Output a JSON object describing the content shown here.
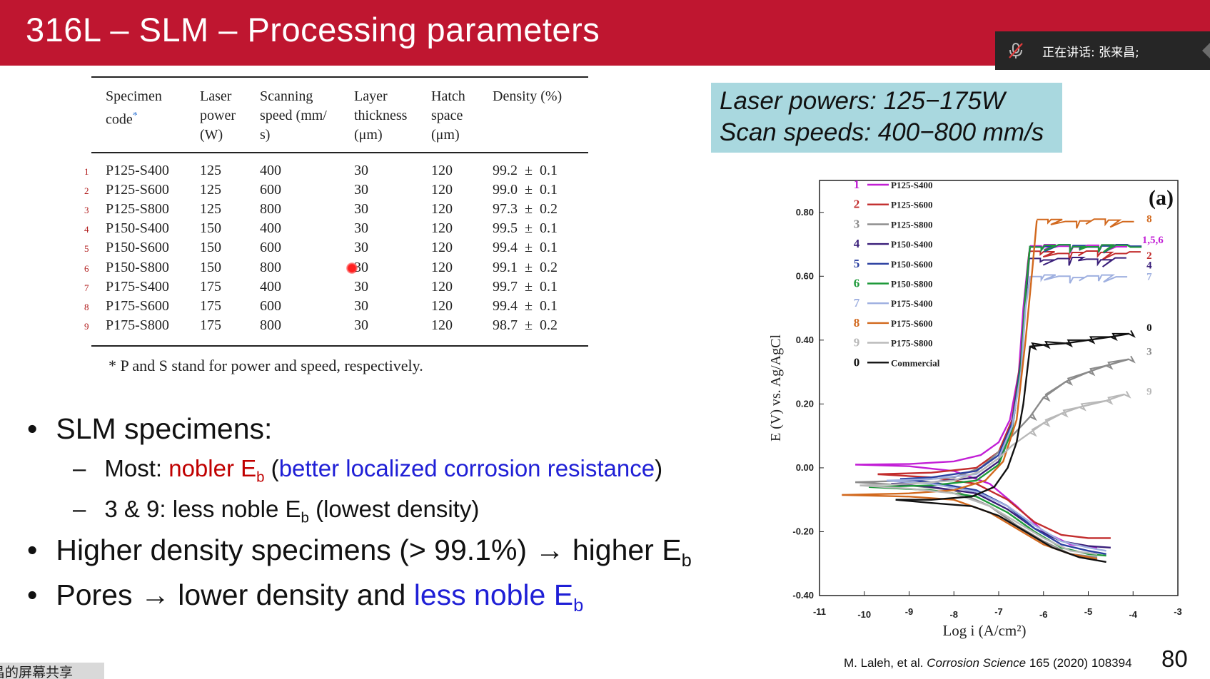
{
  "title": "316L – SLM – Processing parameters",
  "speaker_overlay": {
    "text": "正在讲话: 张来昌;",
    "icon": "mic-muted-icon"
  },
  "table": {
    "headers": [
      [
        "Specimen",
        "code*"
      ],
      [
        "Laser",
        "power",
        "(W)"
      ],
      [
        "Scanning",
        "speed (mm/",
        "s)"
      ],
      [
        "Layer",
        "thickness",
        "(μm)"
      ],
      [
        "Hatch",
        "space",
        "(μm)"
      ],
      [
        "Density (%)"
      ]
    ],
    "rows": [
      {
        "idx": "1",
        "code": "P125-S400",
        "power": "125",
        "speed": "400",
        "layer": "30",
        "hatch": "120",
        "density": "99.2",
        "err": "0.1"
      },
      {
        "idx": "2",
        "code": "P125-S600",
        "power": "125",
        "speed": "600",
        "layer": "30",
        "hatch": "120",
        "density": "99.0",
        "err": "0.1"
      },
      {
        "idx": "3",
        "code": "P125-S800",
        "power": "125",
        "speed": "800",
        "layer": "30",
        "hatch": "120",
        "density": "97.3",
        "err": "0.2"
      },
      {
        "idx": "4",
        "code": "P150-S400",
        "power": "150",
        "speed": "400",
        "layer": "30",
        "hatch": "120",
        "density": "99.5",
        "err": "0.1"
      },
      {
        "idx": "5",
        "code": "P150-S600",
        "power": "150",
        "speed": "600",
        "layer": "30",
        "hatch": "120",
        "density": "99.4",
        "err": "0.1"
      },
      {
        "idx": "6",
        "code": "P150-S800",
        "power": "150",
        "speed": "800",
        "layer": "30",
        "hatch": "120",
        "density": "99.1",
        "err": "0.2"
      },
      {
        "idx": "7",
        "code": "P175-S400",
        "power": "175",
        "speed": "400",
        "layer": "30",
        "hatch": "120",
        "density": "99.7",
        "err": "0.1"
      },
      {
        "idx": "8",
        "code": "P175-S600",
        "power": "175",
        "speed": "600",
        "layer": "30",
        "hatch": "120",
        "density": "99.4",
        "err": "0.1"
      },
      {
        "idx": "9",
        "code": "P175-S800",
        "power": "175",
        "speed": "800",
        "layer": "30",
        "hatch": "120",
        "density": "98.7",
        "err": "0.2"
      }
    ],
    "pm": "±",
    "footnote": "*  P and S stand for power and speed, respectively."
  },
  "bullets": {
    "b1": "SLM specimens:",
    "b1a_prefix": "Most: ",
    "b1a_red": "nobler E",
    "b1a_red_sub": "b",
    "b1a_open": " (",
    "b1a_blue": "better localized corrosion resistance",
    "b1a_close": ")",
    "b1b": "3 & 9: less noble E",
    "b1b_sub": "b",
    "b1b_tail": " (lowest density)",
    "b2": "Higher density specimens (> 99.1%) → higher E",
    "b2_sub": "b",
    "b3_prefix": "Pores → lower density and ",
    "b3_blue": "less noble E",
    "b3_sub": "b",
    "bullet_char": "•",
    "dash_char": "–"
  },
  "infobox": {
    "line1": "Laser powers: 125−175W",
    "line2": "Scan speeds: 400−800 mm/s",
    "bg": "#a9d8df"
  },
  "chart_data": {
    "type": "line",
    "panel_label": "(a)",
    "xlabel": "Log i (A/cm²)",
    "ylabel": "E (V) vs. Ag/AgCl",
    "xlim": [
      -11,
      -3
    ],
    "ylim": [
      -0.4,
      0.9
    ],
    "xticks": [
      "-11",
      "-10",
      "-9",
      "-8",
      "-7",
      "-6",
      "-5",
      "-4",
      "-3"
    ],
    "yticks": [
      "0.80",
      "0.60",
      "0.40",
      "0.20",
      "0.00",
      "-0.20",
      "-0.40"
    ],
    "series": [
      {
        "name": "P125-S400",
        "num": "1",
        "color": "#c21fd6",
        "ecorr": 0.01,
        "eb": 0.695,
        "pass_i": -6.2,
        "anodic": [
          [
            -10.2,
            0.01
          ],
          [
            -9,
            0.012
          ],
          [
            -8,
            0.02
          ],
          [
            -7.4,
            0.04
          ],
          [
            -7,
            0.08
          ],
          [
            -6.75,
            0.15
          ],
          [
            -6.55,
            0.3
          ],
          [
            -6.45,
            0.5
          ],
          [
            -6.35,
            0.64
          ],
          [
            -6.3,
            0.695
          ]
        ],
        "cathodic": [
          [
            -10.2,
            0.01
          ],
          [
            -9,
            0.005
          ],
          [
            -8,
            -0.01
          ],
          [
            -7.2,
            -0.05
          ],
          [
            -6.6,
            -0.12
          ],
          [
            -6,
            -0.2
          ],
          [
            -5.4,
            -0.24
          ],
          [
            -4.8,
            -0.25
          ]
        ]
      },
      {
        "name": "P125-S600",
        "num": "2",
        "color": "#c22c2c",
        "ecorr": -0.02,
        "eb": 0.675,
        "pass_i": -6.2,
        "anodic": [
          [
            -9.7,
            -0.02
          ],
          [
            -8.5,
            -0.015
          ],
          [
            -7.5,
            0
          ],
          [
            -7,
            0.05
          ],
          [
            -6.7,
            0.15
          ],
          [
            -6.5,
            0.35
          ],
          [
            -6.4,
            0.55
          ],
          [
            -6.32,
            0.675
          ]
        ],
        "cathodic": [
          [
            -9.7,
            -0.02
          ],
          [
            -8.5,
            -0.03
          ],
          [
            -7.5,
            -0.05
          ],
          [
            -6.8,
            -0.1
          ],
          [
            -6.2,
            -0.17
          ],
          [
            -5.6,
            -0.21
          ],
          [
            -5,
            -0.22
          ],
          [
            -4.5,
            -0.22
          ]
        ]
      },
      {
        "name": "P125-S800",
        "num": "3",
        "color": "#8a8a8a",
        "ecorr": -0.045,
        "eb": 0.32,
        "pass_i": -5.5,
        "anodic": [
          [
            -10.2,
            -0.045
          ],
          [
            -9,
            -0.04
          ],
          [
            -8,
            -0.03
          ],
          [
            -7.4,
            0
          ],
          [
            -7,
            0.05
          ],
          [
            -6.7,
            0.1
          ],
          [
            -6.3,
            0.16
          ],
          [
            -6,
            0.22
          ],
          [
            -5.5,
            0.27
          ],
          [
            -5,
            0.3
          ],
          [
            -4.6,
            0.32
          ],
          [
            -4.1,
            0.34
          ]
        ],
        "cathodic": [
          [
            -10.2,
            -0.045
          ],
          [
            -9,
            -0.055
          ],
          [
            -8,
            -0.07
          ],
          [
            -7.2,
            -0.12
          ],
          [
            -6.6,
            -0.18
          ],
          [
            -6,
            -0.23
          ],
          [
            -5.4,
            -0.27
          ],
          [
            -4.8,
            -0.28
          ]
        ]
      },
      {
        "name": "P150-S400",
        "num": "4",
        "color": "#3a1f7a",
        "ecorr": -0.05,
        "eb": 0.655,
        "pass_i": -6.2,
        "anodic": [
          [
            -9.4,
            -0.05
          ],
          [
            -8.5,
            -0.045
          ],
          [
            -7.5,
            -0.03
          ],
          [
            -7,
            0.02
          ],
          [
            -6.7,
            0.12
          ],
          [
            -6.5,
            0.32
          ],
          [
            -6.4,
            0.52
          ],
          [
            -6.32,
            0.655
          ]
        ],
        "cathodic": [
          [
            -9.4,
            -0.05
          ],
          [
            -8.5,
            -0.06
          ],
          [
            -7.5,
            -0.08
          ],
          [
            -6.8,
            -0.13
          ],
          [
            -6.2,
            -0.19
          ],
          [
            -5.6,
            -0.23
          ],
          [
            -5,
            -0.245
          ],
          [
            -4.5,
            -0.25
          ]
        ]
      },
      {
        "name": "P150-S600",
        "num": "5",
        "color": "#2a3fa0",
        "ecorr": -0.035,
        "eb": 0.695,
        "pass_i": -6.2,
        "anodic": [
          [
            -9.2,
            -0.035
          ],
          [
            -8.5,
            -0.03
          ],
          [
            -7.5,
            -0.01
          ],
          [
            -7,
            0.04
          ],
          [
            -6.7,
            0.14
          ],
          [
            -6.5,
            0.34
          ],
          [
            -6.4,
            0.55
          ],
          [
            -6.3,
            0.695
          ]
        ],
        "cathodic": [
          [
            -9.2,
            -0.035
          ],
          [
            -8.5,
            -0.045
          ],
          [
            -7.5,
            -0.07
          ],
          [
            -6.8,
            -0.12
          ],
          [
            -6.2,
            -0.19
          ],
          [
            -5.6,
            -0.24
          ],
          [
            -5,
            -0.26
          ],
          [
            -4.6,
            -0.27
          ]
        ]
      },
      {
        "name": "P150-S800",
        "num": "6",
        "color": "#1e9a3a",
        "ecorr": -0.06,
        "eb": 0.695,
        "pass_i": -6.2,
        "anodic": [
          [
            -9.9,
            -0.06
          ],
          [
            -8.5,
            -0.055
          ],
          [
            -7.5,
            -0.04
          ],
          [
            -7,
            0.01
          ],
          [
            -6.7,
            0.12
          ],
          [
            -6.5,
            0.32
          ],
          [
            -6.4,
            0.55
          ],
          [
            -6.3,
            0.695
          ]
        ],
        "cathodic": [
          [
            -9.9,
            -0.06
          ],
          [
            -8.5,
            -0.07
          ],
          [
            -7.5,
            -0.09
          ],
          [
            -6.8,
            -0.14
          ],
          [
            -6.2,
            -0.2
          ],
          [
            -5.6,
            -0.25
          ],
          [
            -5,
            -0.27
          ],
          [
            -4.6,
            -0.275
          ]
        ]
      },
      {
        "name": "P175-S400",
        "num": "7",
        "color": "#9fb0e0",
        "ecorr": -0.04,
        "eb": 0.6,
        "pass_i": -6.2,
        "anodic": [
          [
            -9.5,
            -0.04
          ],
          [
            -8.5,
            -0.035
          ],
          [
            -7.5,
            -0.02
          ],
          [
            -7,
            0.03
          ],
          [
            -6.7,
            0.13
          ],
          [
            -6.5,
            0.3
          ],
          [
            -6.4,
            0.5
          ],
          [
            -6.3,
            0.6
          ]
        ],
        "cathodic": [
          [
            -9.5,
            -0.04
          ],
          [
            -8.5,
            -0.05
          ],
          [
            -7.5,
            -0.075
          ],
          [
            -6.8,
            -0.12
          ],
          [
            -6.2,
            -0.18
          ],
          [
            -5.6,
            -0.23
          ],
          [
            -5,
            -0.25
          ],
          [
            -4.6,
            -0.26
          ]
        ]
      },
      {
        "name": "P175-S600",
        "num": "8",
        "color": "#d2691e",
        "ecorr": -0.085,
        "eb": 0.775,
        "pass_i": -6.1,
        "anodic": [
          [
            -10.5,
            -0.085
          ],
          [
            -9,
            -0.08
          ],
          [
            -8,
            -0.07
          ],
          [
            -7.3,
            -0.04
          ],
          [
            -6.9,
            0.02
          ],
          [
            -6.6,
            0.15
          ],
          [
            -6.4,
            0.4
          ],
          [
            -6.25,
            0.62
          ],
          [
            -6.15,
            0.775
          ]
        ],
        "cathodic": [
          [
            -10.5,
            -0.085
          ],
          [
            -9,
            -0.09
          ],
          [
            -8,
            -0.1
          ],
          [
            -7.2,
            -0.14
          ],
          [
            -6.6,
            -0.19
          ],
          [
            -6,
            -0.24
          ],
          [
            -5.4,
            -0.27
          ],
          [
            -4.8,
            -0.285
          ]
        ]
      },
      {
        "name": "P175-S800",
        "num": "9",
        "color": "#b8b8b8",
        "ecorr": -0.055,
        "eb": 0.22,
        "pass_i": -5.2,
        "anodic": [
          [
            -10.1,
            -0.055
          ],
          [
            -9,
            -0.05
          ],
          [
            -8,
            -0.04
          ],
          [
            -7.4,
            -0.01
          ],
          [
            -7,
            0.03
          ],
          [
            -6.7,
            0.07
          ],
          [
            -6.3,
            0.11
          ],
          [
            -6,
            0.14
          ],
          [
            -5.6,
            0.17
          ],
          [
            -5.2,
            0.19
          ],
          [
            -4.6,
            0.21
          ],
          [
            -4.2,
            0.23
          ]
        ],
        "cathodic": [
          [
            -10.1,
            -0.055
          ],
          [
            -9,
            -0.065
          ],
          [
            -8,
            -0.08
          ],
          [
            -7.2,
            -0.12
          ],
          [
            -6.6,
            -0.17
          ],
          [
            -6,
            -0.22
          ],
          [
            -5.4,
            -0.26
          ],
          [
            -4.8,
            -0.27
          ]
        ]
      },
      {
        "name": "Commercial",
        "num": "0",
        "color": "#111111",
        "ecorr": -0.1,
        "eb": 0.42,
        "pass_i": -5,
        "anodic": [
          [
            -9.3,
            -0.1
          ],
          [
            -8.5,
            -0.1
          ],
          [
            -7.6,
            -0.09
          ],
          [
            -7.1,
            -0.06
          ],
          [
            -6.8,
            0
          ],
          [
            -6.6,
            0.08
          ],
          [
            -6.45,
            0.2
          ],
          [
            -6.35,
            0.32
          ],
          [
            -6.3,
            0.38
          ],
          [
            -6,
            0.385
          ],
          [
            -5.5,
            0.39
          ],
          [
            -5,
            0.4
          ],
          [
            -4.5,
            0.41
          ],
          [
            -4.1,
            0.42
          ]
        ],
        "cathodic": [
          [
            -9.3,
            -0.1
          ],
          [
            -8.5,
            -0.11
          ],
          [
            -7.6,
            -0.12
          ],
          [
            -7,
            -0.15
          ],
          [
            -6.4,
            -0.2
          ],
          [
            -5.8,
            -0.25
          ],
          [
            -5.2,
            -0.28
          ],
          [
            -4.6,
            -0.295
          ]
        ]
      }
    ],
    "end_labels": [
      {
        "text": "8",
        "x": -3.7,
        "y": 0.78,
        "color": "#d2691e"
      },
      {
        "text": "1,5,6",
        "x": -3.8,
        "y": 0.715,
        "color": "#c21fd6"
      },
      {
        "text": "2",
        "x": -3.7,
        "y": 0.665,
        "color": "#c22c2c"
      },
      {
        "text": "4",
        "x": -3.7,
        "y": 0.635,
        "color": "#3a1f7a"
      },
      {
        "text": "7",
        "x": -3.7,
        "y": 0.6,
        "color": "#9fb0e0"
      },
      {
        "text": "0",
        "x": -3.7,
        "y": 0.44,
        "color": "#111111"
      },
      {
        "text": "3",
        "x": -3.7,
        "y": 0.365,
        "color": "#8a8a8a"
      },
      {
        "text": "9",
        "x": -3.7,
        "y": 0.24,
        "color": "#b8b8b8"
      }
    ]
  },
  "citation": {
    "authors": "M. Laleh, et al. ",
    "journal": "Corrosion Science",
    "tail": " 165 (2020) 108394"
  },
  "page_number": "80",
  "share_label": "昌的屏幕共享"
}
